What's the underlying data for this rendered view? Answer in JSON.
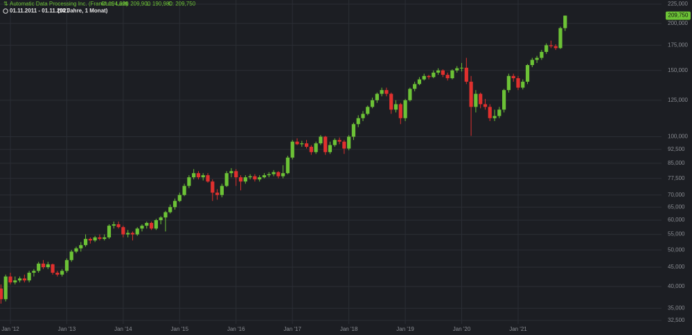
{
  "chart_data": {
    "type": "candlestick",
    "title": "Automatic Data Processing Inc. (Frankfurt, Last)",
    "ohlc_summary": [
      "O: 194,320",
      "H: 209,900",
      "L: 190,980",
      "C: 209,750"
    ],
    "subtitle": "01.11.2011 - 01.11.2021",
    "period_note": "(10 Jahre, 1 Monat)",
    "last_price_label": "209,750",
    "log_scale": true,
    "grid": true,
    "up_color": "#6cc236",
    "down_color": "#e0302e",
    "x": [
      "2011-11",
      "2011-12",
      "2012-01",
      "2012-02",
      "2012-03",
      "2012-04",
      "2012-05",
      "2012-06",
      "2012-07",
      "2012-08",
      "2012-09",
      "2012-10",
      "2012-11",
      "2012-12",
      "2013-01",
      "2013-02",
      "2013-03",
      "2013-04",
      "2013-05",
      "2013-06",
      "2013-07",
      "2013-08",
      "2013-09",
      "2013-10",
      "2013-11",
      "2013-12",
      "2014-01",
      "2014-02",
      "2014-03",
      "2014-04",
      "2014-05",
      "2014-06",
      "2014-07",
      "2014-08",
      "2014-09",
      "2014-10",
      "2014-11",
      "2014-12",
      "2015-01",
      "2015-02",
      "2015-03",
      "2015-04",
      "2015-05",
      "2015-06",
      "2015-07",
      "2015-08",
      "2015-09",
      "2015-10",
      "2015-11",
      "2015-12",
      "2016-01",
      "2016-02",
      "2016-03",
      "2016-04",
      "2016-05",
      "2016-06",
      "2016-07",
      "2016-08",
      "2016-09",
      "2016-10",
      "2016-11",
      "2016-12",
      "2017-01",
      "2017-02",
      "2017-03",
      "2017-04",
      "2017-05",
      "2017-06",
      "2017-07",
      "2017-08",
      "2017-09",
      "2017-10",
      "2017-11",
      "2017-12",
      "2018-01",
      "2018-02",
      "2018-03",
      "2018-04",
      "2018-05",
      "2018-06",
      "2018-07",
      "2018-08",
      "2018-09",
      "2018-10",
      "2018-11",
      "2018-12",
      "2019-01",
      "2019-02",
      "2019-03",
      "2019-04",
      "2019-05",
      "2019-06",
      "2019-07",
      "2019-08",
      "2019-09",
      "2019-10",
      "2019-11",
      "2019-12",
      "2020-01",
      "2020-02",
      "2020-03",
      "2020-04",
      "2020-05",
      "2020-06",
      "2020-07",
      "2020-08",
      "2020-09",
      "2020-10",
      "2020-11",
      "2020-12",
      "2021-01",
      "2021-02",
      "2021-03",
      "2021-04",
      "2021-05",
      "2021-06",
      "2021-07",
      "2021-08",
      "2021-09",
      "2021-10",
      "2021-11"
    ],
    "open": [
      39500,
      37000,
      42500,
      41000,
      41500,
      42000,
      41500,
      43500,
      44000,
      46000,
      45000,
      45800,
      43500,
      43000,
      44000,
      47000,
      49500,
      50500,
      51500,
      53500,
      53000,
      54000,
      53500,
      54000,
      58000,
      58500,
      57500,
      55000,
      55500,
      55000,
      57000,
      58000,
      59000,
      57000,
      60000,
      61000,
      63000,
      65000,
      67500,
      70000,
      74000,
      78000,
      80000,
      78000,
      79000,
      76000,
      71000,
      70000,
      74000,
      80000,
      81000,
      78000,
      76000,
      78000,
      78500,
      77000,
      78000,
      79000,
      79500,
      80500,
      78500,
      80000,
      88000,
      97000,
      95500,
      96000,
      94000,
      91000,
      96000,
      100000,
      91000,
      95000,
      98000,
      97000,
      93000,
      100000,
      108000,
      112000,
      115000,
      120000,
      125000,
      130000,
      133000,
      130000,
      118000,
      122000,
      112000,
      125000,
      134000,
      138000,
      142000,
      145000,
      144000,
      148000,
      150000,
      146000,
      143000,
      150000,
      152000,
      152500,
      140000,
      120000,
      130000,
      122000,
      120000,
      112000,
      113500,
      118000,
      133000,
      145000,
      143000,
      135000,
      140000,
      155000,
      160000,
      162000,
      168000,
      175000,
      174000,
      172000,
      194320
    ],
    "high": [
      40500,
      43000,
      43500,
      42500,
      42500,
      43000,
      44000,
      44500,
      46500,
      47000,
      46500,
      46000,
      44000,
      44500,
      47500,
      50000,
      51000,
      52500,
      55000,
      54000,
      54500,
      55000,
      55000,
      58500,
      59500,
      59500,
      58000,
      56500,
      56000,
      57500,
      58500,
      59500,
      59500,
      60500,
      61500,
      63500,
      66000,
      68500,
      71000,
      75000,
      79000,
      82000,
      81000,
      80000,
      80000,
      77000,
      72500,
      75000,
      81000,
      82500,
      82000,
      79000,
      79000,
      79500,
      79500,
      79000,
      80000,
      80500,
      81500,
      81000,
      84000,
      89000,
      98000,
      99000,
      97500,
      98000,
      95000,
      97000,
      101000,
      100500,
      97000,
      99000,
      99500,
      98000,
      101000,
      109000,
      114000,
      117000,
      121000,
      127000,
      131000,
      135000,
      135000,
      131000,
      125000,
      123000,
      126000,
      135000,
      140000,
      144000,
      147000,
      146000,
      150000,
      152000,
      151000,
      148000,
      151000,
      154000,
      157000,
      162000,
      145000,
      133000,
      131000,
      126000,
      122000,
      118000,
      120000,
      134000,
      147000,
      147000,
      145000,
      142000,
      156000,
      162000,
      164000,
      170000,
      177000,
      180000,
      176000,
      196000,
      209900
    ],
    "low": [
      36000,
      36500,
      40500,
      40500,
      41000,
      41000,
      41000,
      42500,
      43500,
      44500,
      44500,
      43000,
      42500,
      42500,
      43500,
      46500,
      49000,
      49500,
      51000,
      52000,
      52500,
      53000,
      53000,
      53500,
      57000,
      57000,
      54000,
      54000,
      53000,
      54500,
      56000,
      57000,
      56500,
      56500,
      58500,
      56000,
      62500,
      64000,
      67000,
      69500,
      73000,
      77000,
      77000,
      76500,
      75500,
      67500,
      68000,
      69000,
      73500,
      78000,
      74000,
      72000,
      75000,
      77000,
      76000,
      76000,
      77500,
      78000,
      78500,
      77500,
      77500,
      79500,
      87000,
      95000,
      94000,
      93000,
      89500,
      90000,
      95000,
      89500,
      90000,
      94000,
      95500,
      90000,
      92000,
      98000,
      106000,
      110000,
      114000,
      119000,
      123000,
      128000,
      128000,
      115000,
      116000,
      108000,
      110000,
      124000,
      132000,
      137000,
      141000,
      142000,
      143000,
      146000,
      144000,
      141000,
      142000,
      148000,
      149000,
      138000,
      100500,
      116000,
      119000,
      118000,
      110000,
      110000,
      112000,
      116000,
      131000,
      140000,
      133000,
      133500,
      138000,
      153000,
      157000,
      160000,
      166000,
      172000,
      170000,
      171000,
      190980
    ],
    "close": [
      37000,
      42500,
      41000,
      41500,
      42000,
      41500,
      43500,
      44000,
      46000,
      45000,
      45800,
      43500,
      43000,
      44000,
      47000,
      49500,
      50500,
      51500,
      53500,
      53000,
      54000,
      53500,
      54000,
      58000,
      58500,
      57500,
      55000,
      55500,
      55000,
      57000,
      58000,
      59000,
      57000,
      60000,
      61000,
      63000,
      65000,
      67500,
      70000,
      74000,
      78000,
      80000,
      78000,
      79000,
      76000,
      71000,
      70000,
      74000,
      80000,
      81000,
      78000,
      76000,
      78000,
      78500,
      77000,
      78000,
      79000,
      79500,
      80500,
      78500,
      80000,
      88000,
      97000,
      95500,
      96000,
      94000,
      91000,
      96000,
      100000,
      91000,
      95000,
      98000,
      97000,
      93000,
      100000,
      108000,
      112000,
      115000,
      120000,
      125000,
      130000,
      133000,
      130000,
      118000,
      122000,
      112000,
      125000,
      134000,
      138000,
      142000,
      145000,
      144000,
      148000,
      150000,
      146000,
      143000,
      150000,
      152000,
      152500,
      140000,
      120000,
      130000,
      122000,
      120000,
      112000,
      113500,
      118000,
      133000,
      145000,
      143000,
      135000,
      140000,
      155000,
      160000,
      162000,
      168000,
      175000,
      174000,
      172000,
      194320,
      209750
    ],
    "xticks": [
      {
        "value": "2012-01",
        "label": "Jan '12"
      },
      {
        "value": "2013-01",
        "label": "Jan '13"
      },
      {
        "value": "2014-01",
        "label": "Jan '14"
      },
      {
        "value": "2015-01",
        "label": "Jan '15"
      },
      {
        "value": "2016-01",
        "label": "Jan '16"
      },
      {
        "value": "2017-01",
        "label": "Jan '17"
      },
      {
        "value": "2018-01",
        "label": "Jan '18"
      },
      {
        "value": "2019-01",
        "label": "Jan '19"
      },
      {
        "value": "2020-01",
        "label": "Jan '20"
      },
      {
        "value": "2021-01",
        "label": "Jan '21"
      }
    ],
    "ylim": [
      31800,
      230800
    ],
    "yticks": [
      {
        "value": 32500,
        "label": "32,500"
      },
      {
        "value": 35000,
        "label": "35,000"
      },
      {
        "value": 40000,
        "label": "40,000"
      },
      {
        "value": 45000,
        "label": "45,000"
      },
      {
        "value": 50000,
        "label": "50,000"
      },
      {
        "value": 55000,
        "label": "55,000"
      },
      {
        "value": 60000,
        "label": "60,000"
      },
      {
        "value": 65000,
        "label": "65,000"
      },
      {
        "value": 70000,
        "label": "70,000"
      },
      {
        "value": 77500,
        "label": "77,500"
      },
      {
        "value": 85000,
        "label": "85,000"
      },
      {
        "value": 92500,
        "label": "92,500"
      },
      {
        "value": 100000,
        "label": "100,000"
      },
      {
        "value": 125000,
        "label": "125,000"
      },
      {
        "value": 150000,
        "label": "150,000"
      },
      {
        "value": 175000,
        "label": "175,000"
      },
      {
        "value": 200000,
        "label": "200,000"
      },
      {
        "value": 225000,
        "label": "225,000"
      }
    ]
  }
}
